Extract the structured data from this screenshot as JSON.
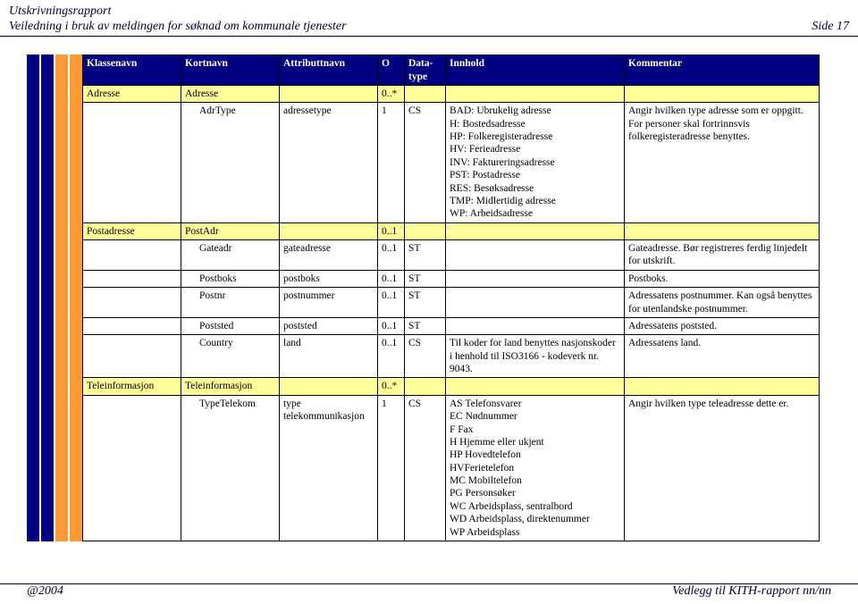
{
  "header": {
    "title": "Utskrivningsrapport",
    "subtitle": "Veiledning i bruk av meldingen for søknad om kommunale tjenester",
    "page": "Side 17"
  },
  "columns": [
    "Klassenavn",
    "Kortnavn",
    "Attributtnavn",
    "O",
    "Data-type",
    "Innhold",
    "Kommentar"
  ],
  "rows": [
    {
      "group": true,
      "cells": [
        "Adresse",
        "Adresse",
        "",
        "0..*",
        "",
        "",
        ""
      ]
    },
    {
      "child": true,
      "cells": [
        "",
        "AdrType",
        "adressetype",
        "1",
        "CS",
        "BAD: Ubrukelig adresse\nH: Bostedsadresse\nHP: Folkeregisteradresse\nHV: Ferieadresse\nINV: Faktureringsadresse\nPST: Postadresse\nRES: Besøksadresse\nTMP: Midlertidig adresse\nWP: Arbeidsadresse",
        "Angir hvilken type adresse som er oppgitt. For personer skal fortrinnsvis folkeregisteradresse benyttes."
      ]
    },
    {
      "group": true,
      "cells": [
        "Postadresse",
        "PostAdr",
        "",
        "0..1",
        "",
        "",
        ""
      ]
    },
    {
      "child": true,
      "cells": [
        "",
        "Gateadr",
        "gateadresse",
        "0..1",
        "ST",
        "",
        "Gateadresse. Bør registreres ferdig linjedelt for utskrift."
      ]
    },
    {
      "child": true,
      "cells": [
        "",
        "Postboks",
        "postboks",
        "0..1",
        "ST",
        "",
        "Postboks."
      ]
    },
    {
      "child": true,
      "cells": [
        "",
        "Postnr",
        "postnummer",
        "0..1",
        "ST",
        "",
        "Adressatens postnummer. Kan også benyttes for utenlandske postnummer."
      ]
    },
    {
      "child": true,
      "cells": [
        "",
        "Poststed",
        "poststed",
        "0..1",
        "ST",
        "",
        "Adressatens poststed."
      ]
    },
    {
      "child": true,
      "cells": [
        "",
        "Country",
        "land",
        "0..1",
        "CS",
        "Til koder for land benyttes nasjonskoder i henhold til ISO3166 - kodeverk nr. 9043.",
        "Adressatens land."
      ]
    },
    {
      "group": true,
      "cells": [
        "Teleinformasjon",
        "Teleinformasjon",
        "",
        "0..*",
        "",
        "",
        ""
      ]
    },
    {
      "child": true,
      "cells": [
        "",
        "TypeTelekom",
        "type telekommunikasjon",
        "1",
        "CS",
        "AS Telefonsvarer\nEC Nødnummer\nF    Fax\nH   Hjemme eller ukjent\nHP Hovedtelefon\nHVFerietelefon\nMC      Mobiltelefon\nPG Personsøker\nWC      Arbeidsplass, sentralbord\nWD      Arbeidsplass, direktenummer\nWP      Arbeidsplass",
        "Angir hvilken type teleadresse dette er."
      ]
    }
  ],
  "footer": {
    "left": "@2004",
    "right": "Vedlegg til KITH-rapport nn/nn"
  }
}
